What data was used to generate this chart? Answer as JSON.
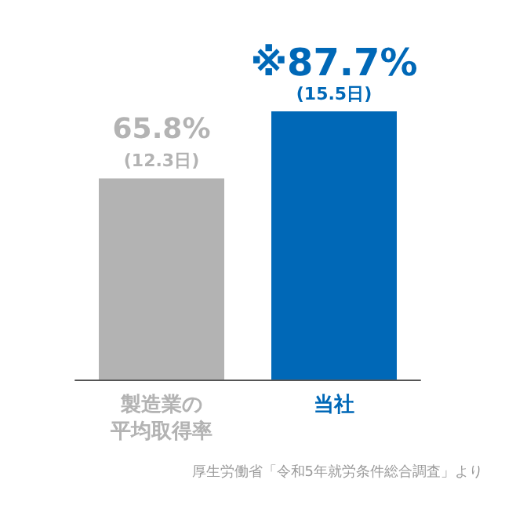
{
  "chart_data": {
    "type": "bar",
    "categories": [
      "製造業の平均取得率",
      "当社"
    ],
    "values": [
      65.8,
      87.7
    ],
    "colors": [
      "#b3b3b3",
      "#0068b7"
    ],
    "value_labels": [
      "65.8%\n(12.3日)",
      "※87.7%\n(15.5日)"
    ],
    "annotations": [
      "厚生労働省「令和5年就労条件総合調査」より"
    ]
  }
}
